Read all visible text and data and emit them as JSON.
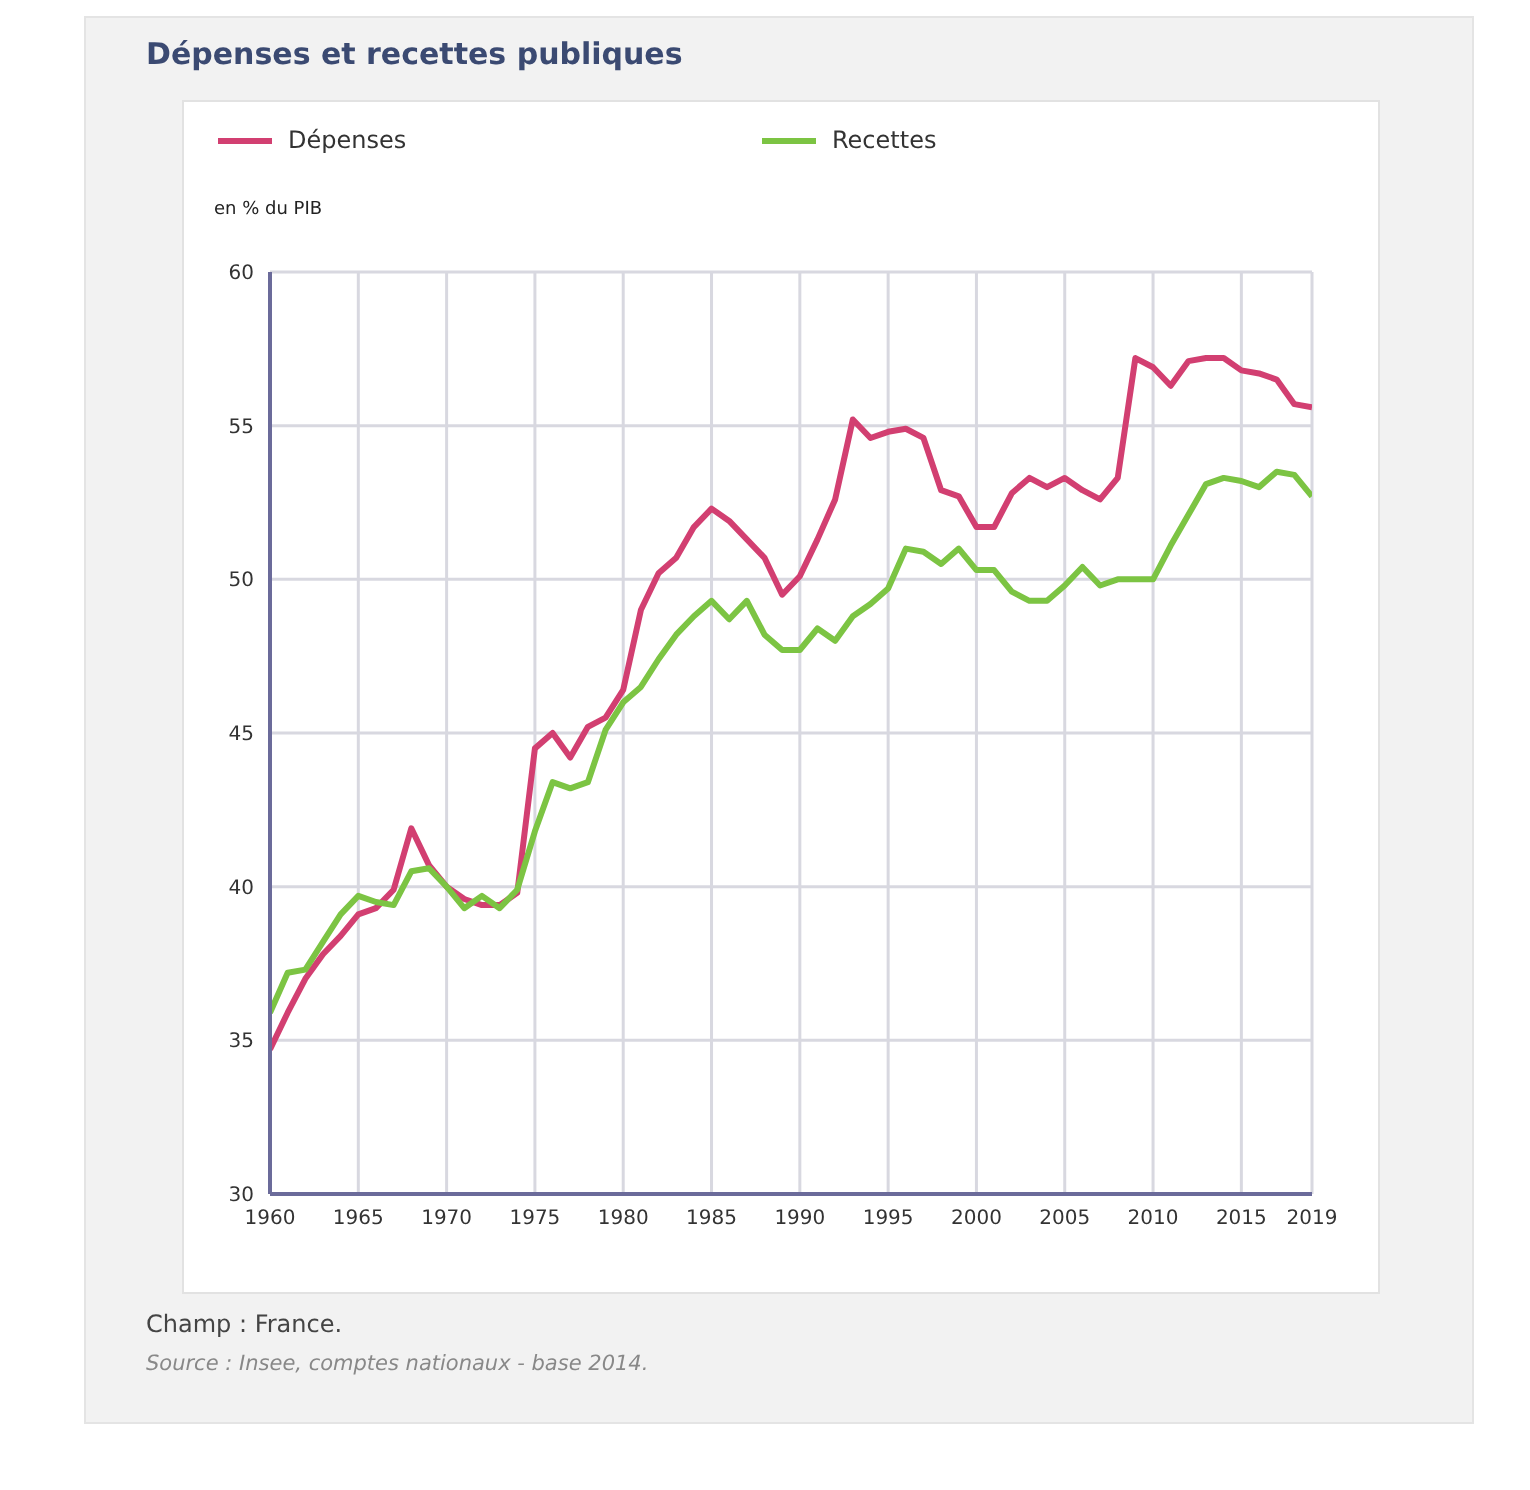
{
  "chart_data": {
    "type": "line",
    "title": "Dépenses et recettes publiques",
    "ylabel": "en % du PIB",
    "x": [
      1960,
      1961,
      1962,
      1963,
      1964,
      1965,
      1966,
      1967,
      1968,
      1969,
      1970,
      1971,
      1972,
      1973,
      1974,
      1975,
      1976,
      1977,
      1978,
      1979,
      1980,
      1981,
      1982,
      1983,
      1984,
      1985,
      1986,
      1987,
      1988,
      1989,
      1990,
      1991,
      1992,
      1993,
      1994,
      1995,
      1996,
      1997,
      1998,
      1999,
      2000,
      2001,
      2002,
      2003,
      2004,
      2005,
      2006,
      2007,
      2008,
      2009,
      2010,
      2011,
      2012,
      2013,
      2014,
      2015,
      2016,
      2017,
      2018,
      2019
    ],
    "series": [
      {
        "name": "Dépenses",
        "color": "#d23f71",
        "values": [
          34.7,
          35.9,
          37.0,
          37.8,
          38.4,
          39.1,
          39.3,
          39.9,
          41.9,
          40.7,
          40.0,
          39.6,
          39.4,
          39.4,
          39.8,
          44.5,
          45.0,
          44.2,
          45.2,
          45.5,
          46.4,
          49.0,
          50.2,
          50.7,
          51.7,
          52.3,
          51.9,
          51.3,
          50.7,
          49.5,
          50.1,
          51.3,
          52.6,
          55.2,
          54.6,
          54.8,
          54.9,
          54.6,
          52.9,
          52.7,
          51.7,
          51.7,
          52.8,
          53.3,
          53.0,
          53.3,
          52.9,
          52.6,
          53.3,
          57.2,
          56.9,
          56.3,
          57.1,
          57.2,
          57.2,
          56.8,
          56.7,
          56.5,
          55.7,
          55.6
        ]
      },
      {
        "name": "Recettes",
        "color": "#7cc443",
        "values": [
          35.9,
          37.2,
          37.3,
          38.2,
          39.1,
          39.7,
          39.5,
          39.4,
          40.5,
          40.6,
          40.0,
          39.3,
          39.7,
          39.3,
          39.9,
          41.8,
          43.4,
          43.2,
          43.4,
          45.1,
          46.0,
          46.5,
          47.4,
          48.2,
          48.8,
          49.3,
          48.7,
          49.3,
          48.2,
          47.7,
          47.7,
          48.4,
          48.0,
          48.8,
          49.2,
          49.7,
          51.0,
          50.9,
          50.5,
          51.0,
          50.3,
          50.3,
          49.6,
          49.3,
          49.3,
          49.8,
          50.4,
          49.8,
          50.0,
          50.0,
          50.0,
          51.1,
          52.1,
          53.1,
          53.3,
          53.2,
          53.0,
          53.5,
          53.4,
          52.7
        ]
      }
    ],
    "xlim": [
      1960,
      2019
    ],
    "xticks": [
      1960,
      1965,
      1970,
      1975,
      1980,
      1985,
      1990,
      1995,
      2000,
      2005,
      2010,
      2015,
      2019
    ],
    "ylim": [
      30,
      60
    ],
    "yticks": [
      30,
      35,
      40,
      45,
      50,
      55,
      60
    ],
    "grid": true,
    "legend": "top",
    "marker": "none",
    "line_style": "solid",
    "annotations": [
      "Champ : France.",
      "Source : Insee, comptes nationaux - base 2014."
    ]
  }
}
